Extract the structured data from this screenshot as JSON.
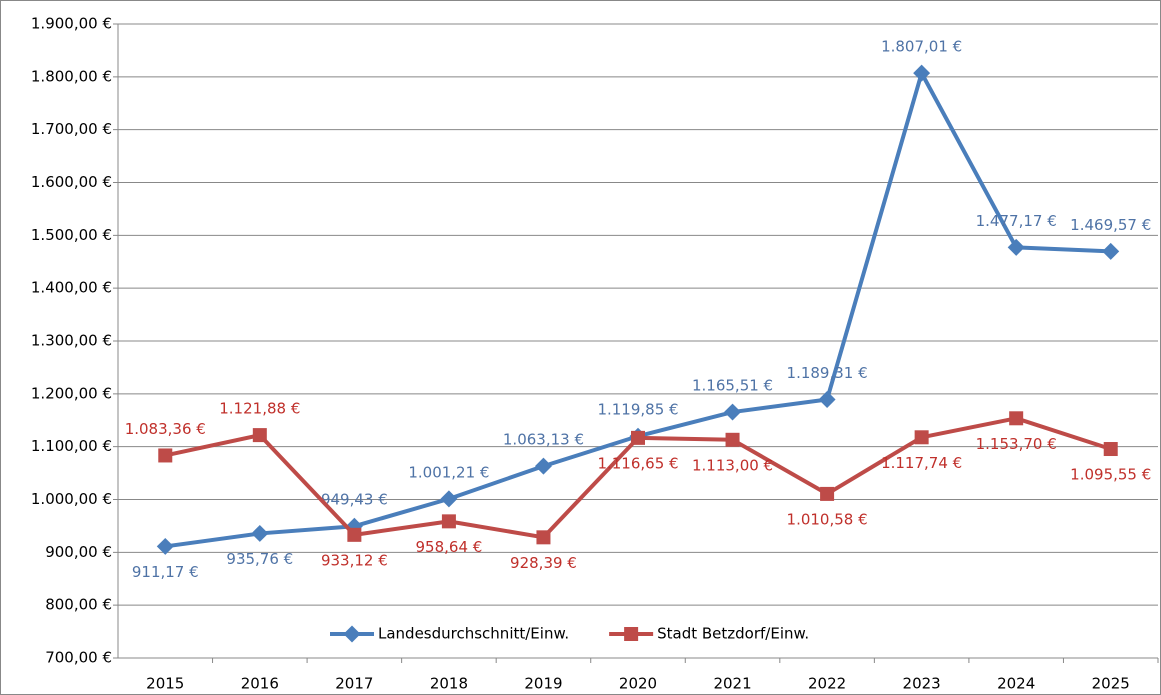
{
  "chart_data": {
    "type": "line",
    "categories": [
      "2015",
      "2016",
      "2017",
      "2018",
      "2019",
      "2020",
      "2021",
      "2022",
      "2023",
      "2024",
      "2025"
    ],
    "series": [
      {
        "name": "Landesdurchschnitt/Einw.",
        "color": "#4a7ebb",
        "values": [
          911.17,
          935.76,
          949.43,
          1001.21,
          1063.13,
          1119.85,
          1165.51,
          1189.31,
          1807.01,
          1477.17,
          1469.57
        ],
        "value_labels": [
          "911,17 €",
          "935,76 €",
          "949,43 €",
          "1.001,21 €",
          "1.063,13 €",
          "1.119,85 €",
          "1.165,51 €",
          "1.189,31 €",
          "1.807,01 €",
          "1.477,17 €",
          "1.469,57 €"
        ]
      },
      {
        "name": "Stadt Betzdorf/Einw.",
        "color": "#be4b48",
        "values": [
          1083.36,
          1121.88,
          933.12,
          958.64,
          928.39,
          1116.65,
          1113.0,
          1010.58,
          1117.74,
          1153.7,
          1095.55
        ],
        "value_labels": [
          "1.083,36 €",
          "1.121,88 €",
          "933,12 €",
          "958,64 €",
          "928,39 €",
          "1.116,65 €",
          "1.113,00 €",
          "1.010,58 €",
          "1.117,74 €",
          "1.153,70 €",
          "1.095,55 €"
        ]
      }
    ],
    "ylim": [
      700,
      1900
    ],
    "yticks": [
      {
        "value": 700,
        "label": "700,00 €"
      },
      {
        "value": 800,
        "label": "800,00 €"
      },
      {
        "value": 900,
        "label": "900,00 €"
      },
      {
        "value": 1000,
        "label": "1.000,00 €"
      },
      {
        "value": 1100,
        "label": "1.100,00 €"
      },
      {
        "value": 1200,
        "label": "1.200,00 €"
      },
      {
        "value": 1300,
        "label": "1.300,00 €"
      },
      {
        "value": 1400,
        "label": "1.400,00 €"
      },
      {
        "value": 1500,
        "label": "1.500,00 €"
      },
      {
        "value": 1600,
        "label": "1.600,00 €"
      },
      {
        "value": 1700,
        "label": "1.700,00 €"
      },
      {
        "value": 1800,
        "label": "1.800,00 €"
      },
      {
        "value": 1900,
        "label": "1.900,00 €"
      }
    ],
    "grid": true,
    "legend": "bottom"
  }
}
